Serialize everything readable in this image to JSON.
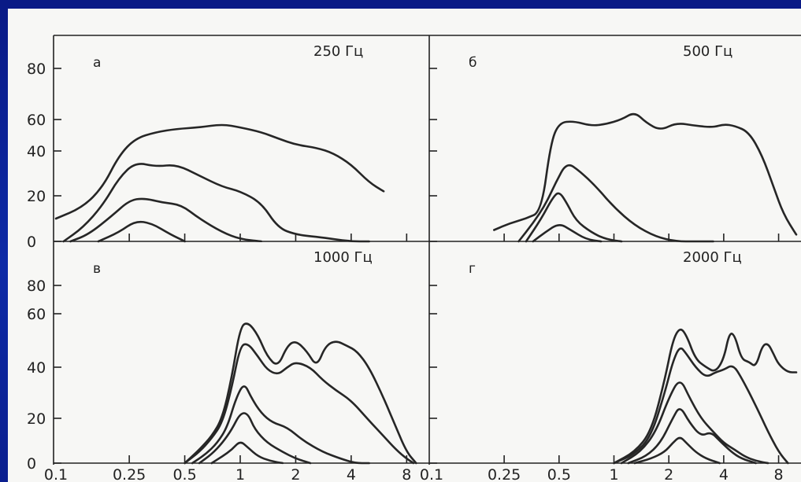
{
  "chart_data": [
    {
      "type": "line",
      "panel_letter": "а",
      "title": "250 Гц",
      "x_scale": "log",
      "ylim": [
        0,
        90
      ],
      "xlim": [
        0.1,
        10
      ],
      "y_ticks": [
        "0",
        "20",
        "40",
        "60",
        "80"
      ],
      "x_ticks": [],
      "series": [
        {
          "x": [
            0.1,
            0.14,
            0.18,
            0.22,
            0.27,
            0.35,
            0.45,
            0.6,
            0.8,
            1.0,
            1.3,
            1.6,
            2.0,
            2.6,
            3.2,
            4.0,
            5.0,
            6.0
          ],
          "y": [
            10,
            15,
            24,
            38,
            48,
            52,
            54,
            55,
            57,
            55,
            52,
            48,
            44,
            42,
            39,
            34,
            26,
            22
          ]
        },
        {
          "x": [
            0.11,
            0.14,
            0.18,
            0.22,
            0.27,
            0.35,
            0.45,
            0.6,
            0.8,
            1.0,
            1.3,
            1.6,
            2.0,
            2.6,
            3.2,
            4.0,
            5.0
          ],
          "y": [
            0,
            6,
            16,
            28,
            35,
            33,
            34,
            29,
            24,
            22,
            17,
            6,
            3,
            2,
            1,
            0,
            0
          ]
        },
        {
          "x": [
            0.12,
            0.15,
            0.2,
            0.25,
            0.3,
            0.38,
            0.48,
            0.6,
            0.8,
            1.0,
            1.3
          ],
          "y": [
            0,
            3,
            11,
            18,
            19,
            17,
            16,
            10,
            4,
            1,
            0
          ]
        },
        {
          "x": [
            0.17,
            0.22,
            0.27,
            0.33,
            0.42,
            0.5
          ],
          "y": [
            0,
            4,
            9,
            8,
            3,
            0
          ]
        }
      ]
    },
    {
      "type": "line",
      "panel_letter": "б",
      "title": "500 Гц",
      "x_scale": "log",
      "ylim": [
        0,
        90
      ],
      "xlim": [
        0.1,
        10
      ],
      "y_ticks": [],
      "x_ticks": [],
      "series": [
        {
          "x": [
            0.22,
            0.27,
            0.33,
            0.4,
            0.45,
            0.5,
            0.6,
            0.75,
            0.9,
            1.1,
            1.3,
            1.5,
            1.8,
            2.2,
            2.8,
            3.5,
            4.0,
            4.6,
            5.5,
            6.5,
            7.5,
            8.5,
            10.0
          ],
          "y": [
            5,
            8,
            10,
            13,
            45,
            58,
            59,
            56,
            57,
            60,
            63,
            58,
            53,
            58,
            56,
            55,
            57,
            56,
            52,
            38,
            24,
            12,
            3
          ]
        },
        {
          "x": [
            0.3,
            0.36,
            0.42,
            0.48,
            0.55,
            0.65,
            0.8,
            1.0,
            1.3,
            1.7,
            2.2,
            2.8,
            3.5
          ],
          "y": [
            0,
            8,
            16,
            26,
            35,
            31,
            24,
            15,
            7,
            2,
            0,
            0,
            0
          ]
        },
        {
          "x": [
            0.33,
            0.4,
            0.46,
            0.5,
            0.55,
            0.62,
            0.75,
            0.9,
            1.1
          ],
          "y": [
            0,
            10,
            19,
            22,
            17,
            9,
            4,
            1,
            0
          ]
        },
        {
          "x": [
            0.36,
            0.42,
            0.5,
            0.58,
            0.7,
            0.85
          ],
          "y": [
            0,
            4,
            8,
            5,
            1,
            0
          ]
        }
      ]
    },
    {
      "type": "line",
      "panel_letter": "в",
      "title": "1000 Гц",
      "x_scale": "log",
      "ylim": [
        0,
        90
      ],
      "xlim": [
        0.1,
        10
      ],
      "y_ticks": [
        "0",
        "20",
        "40",
        "60",
        "80"
      ],
      "x_ticks": [
        "0.1",
        "0.25",
        "0.5",
        "1",
        "2",
        "4",
        "8"
      ],
      "series": [
        {
          "x": [
            0.5,
            0.6,
            0.7,
            0.8,
            0.9,
            1.0,
            1.1,
            1.25,
            1.4,
            1.6,
            1.8,
            2.0,
            2.3,
            2.6,
            2.9,
            3.3,
            3.8,
            4.3,
            5.0,
            6.0,
            7.0,
            8.0,
            9.0
          ],
          "y": [
            0,
            6,
            12,
            20,
            36,
            55,
            57,
            52,
            44,
            40,
            48,
            50,
            46,
            40,
            48,
            50,
            48,
            46,
            40,
            28,
            16,
            5,
            0
          ]
        },
        {
          "x": [
            0.5,
            0.6,
            0.7,
            0.8,
            0.9,
            1.0,
            1.1,
            1.25,
            1.4,
            1.6,
            1.8,
            2.0,
            2.4,
            2.8,
            3.3,
            4.0,
            5.0,
            6.0,
            7.0,
            8.0,
            8.7
          ],
          "y": [
            0,
            5,
            11,
            18,
            32,
            48,
            49,
            44,
            39,
            37,
            40,
            42,
            40,
            35,
            31,
            27,
            19,
            12,
            6,
            2,
            0
          ]
        },
        {
          "x": [
            0.55,
            0.65,
            0.75,
            0.85,
            0.95,
            1.05,
            1.15,
            1.3,
            1.5,
            1.8,
            2.2,
            2.8,
            3.5,
            4.2,
            5.0
          ],
          "y": [
            0,
            4,
            9,
            16,
            28,
            34,
            28,
            22,
            18,
            16,
            10,
            5,
            2,
            0,
            0
          ]
        },
        {
          "x": [
            0.6,
            0.7,
            0.8,
            0.9,
            1.0,
            1.1,
            1.2,
            1.4,
            1.7,
            2.0,
            2.4
          ],
          "y": [
            0,
            4,
            9,
            15,
            22,
            22,
            15,
            9,
            5,
            2,
            0
          ]
        },
        {
          "x": [
            0.7,
            0.8,
            0.9,
            1.0,
            1.1,
            1.25,
            1.45,
            1.7
          ],
          "y": [
            0,
            3,
            6,
            10,
            7,
            3,
            1,
            0
          ]
        }
      ]
    },
    {
      "type": "line",
      "panel_letter": "г",
      "title": "2000 Гц",
      "x_scale": "log",
      "ylim": [
        0,
        90
      ],
      "xlim": [
        0.1,
        10
      ],
      "y_ticks": [],
      "x_ticks": [
        "0.1",
        "0.25",
        "0.5",
        "1",
        "2",
        "4",
        "8"
      ],
      "series": [
        {
          "x": [
            1.0,
            1.3,
            1.6,
            1.9,
            2.1,
            2.3,
            2.5,
            2.8,
            3.2,
            3.6,
            4.0,
            4.3,
            4.6,
            5.0,
            5.5,
            6.0,
            6.5,
            7.0,
            7.5,
            8.0,
            9.0,
            10.0
          ],
          "y": [
            0,
            5,
            14,
            35,
            50,
            55,
            52,
            43,
            40,
            38,
            43,
            53,
            52,
            43,
            42,
            40,
            48,
            49,
            45,
            41,
            38,
            38
          ]
        },
        {
          "x": [
            1.0,
            1.3,
            1.6,
            1.9,
            2.1,
            2.3,
            2.5,
            2.8,
            3.2,
            3.6,
            4.0,
            4.5,
            5.0,
            6.0,
            7.0,
            8.0,
            9.0
          ],
          "y": [
            0,
            4,
            12,
            30,
            42,
            48,
            45,
            40,
            36,
            38,
            39,
            41,
            36,
            25,
            14,
            5,
            0
          ]
        },
        {
          "x": [
            1.1,
            1.4,
            1.7,
            2.0,
            2.3,
            2.6,
            3.0,
            3.5,
            4.0,
            4.6,
            5.2,
            6.0,
            7.0
          ],
          "y": [
            0,
            5,
            14,
            28,
            36,
            28,
            20,
            14,
            9,
            6,
            3,
            1,
            0
          ]
        },
        {
          "x": [
            1.2,
            1.5,
            1.8,
            2.1,
            2.3,
            2.6,
            3.0,
            3.4,
            3.8,
            4.4,
            5.0,
            6.0
          ],
          "y": [
            0,
            3,
            9,
            20,
            25,
            18,
            12,
            14,
            10,
            5,
            2,
            0
          ]
        },
        {
          "x": [
            1.3,
            1.6,
            1.9,
            2.1,
            2.3,
            2.5,
            2.8,
            3.2,
            3.8
          ],
          "y": [
            0,
            2,
            5,
            9,
            12,
            9,
            5,
            2,
            0
          ]
        }
      ]
    }
  ]
}
